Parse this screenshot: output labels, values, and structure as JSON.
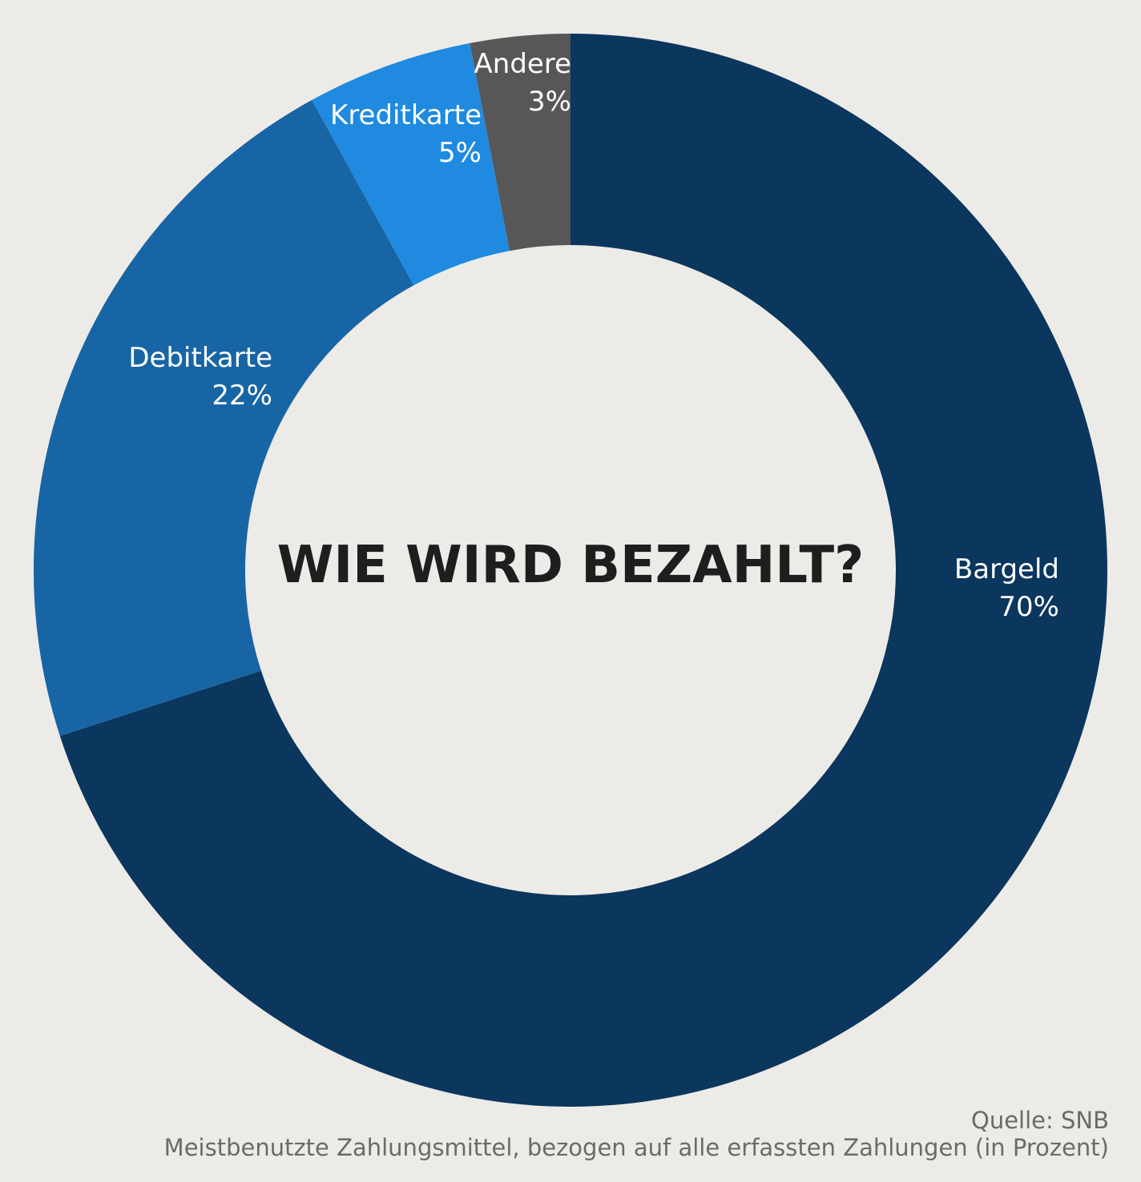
{
  "chart_data": {
    "type": "pie",
    "style": "donut",
    "title": "WIE WIRD BEZAHLT?",
    "slices": [
      {
        "label": "Bargeld",
        "value": 70,
        "value_label": "70%",
        "color": "#0b365d"
      },
      {
        "label": "Debitkarte",
        "value": 22,
        "value_label": "22%",
        "color": "#1865a5"
      },
      {
        "label": "Kreditkarte",
        "value": 5,
        "value_label": "5%",
        "color": "#1f8ae0"
      },
      {
        "label": "Andere",
        "value": 3,
        "value_label": "3%",
        "color": "#575757"
      }
    ],
    "start": "top",
    "direction": "clockwise",
    "legend": "none"
  },
  "footer": {
    "source": "Quelle: SNB",
    "note": "Meistbenutzte Zahlungsmittel, bezogen auf alle erfassten Zahlungen (in Prozent)"
  },
  "colors": {
    "background": "#edebe7",
    "title_text": "#1e1e1e",
    "footnote_text": "#6a6a6a",
    "slice_label_text": "#ffffff"
  }
}
